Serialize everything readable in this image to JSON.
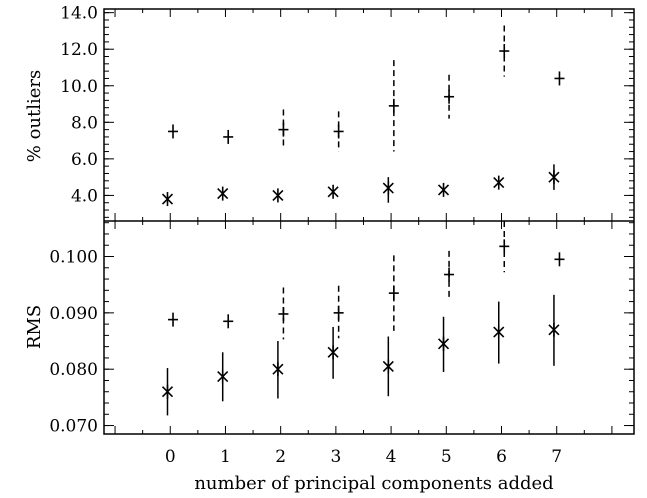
{
  "chart_data": [
    {
      "type": "scatter",
      "panel": "top",
      "xlabel": "",
      "ylabel": "% outliers",
      "ylim": [
        2.6,
        14.2
      ],
      "yticks": [
        "4.0",
        "6.0",
        "8.0",
        "10.0",
        "12.0",
        "14.0"
      ],
      "xlim": [
        -1.2,
        8.4
      ],
      "series": [
        {
          "marker": "plus",
          "errorbar": "dashed",
          "points": [
            {
              "x": 0.05,
              "y": 7.5,
              "lo": 7.5,
              "hi": 7.5
            },
            {
              "x": 1.05,
              "y": 7.2,
              "lo": 7.2,
              "hi": 7.2
            },
            {
              "x": 2.05,
              "y": 7.6,
              "lo": 6.6,
              "hi": 8.7
            },
            {
              "x": 3.05,
              "y": 7.5,
              "lo": 6.4,
              "hi": 8.6
            },
            {
              "x": 4.05,
              "y": 8.9,
              "lo": 6.4,
              "hi": 11.4
            },
            {
              "x": 5.05,
              "y": 9.4,
              "lo": 8.2,
              "hi": 10.6
            },
            {
              "x": 6.05,
              "y": 11.9,
              "lo": 10.5,
              "hi": 13.3
            },
            {
              "x": 7.05,
              "y": 10.4,
              "lo": 10.4,
              "hi": 10.4
            }
          ]
        },
        {
          "marker": "asterisk",
          "errorbar": "solid",
          "points": [
            {
              "x": -0.05,
              "y": 3.8,
              "lo": 3.8,
              "hi": 3.8
            },
            {
              "x": 0.95,
              "y": 4.1,
              "lo": 4.1,
              "hi": 4.1
            },
            {
              "x": 1.95,
              "y": 4.0,
              "lo": 4.0,
              "hi": 4.0
            },
            {
              "x": 2.95,
              "y": 4.2,
              "lo": 4.2,
              "hi": 4.2
            },
            {
              "x": 3.95,
              "y": 4.4,
              "lo": 3.6,
              "hi": 5.0
            },
            {
              "x": 4.95,
              "y": 4.3,
              "lo": 4.3,
              "hi": 4.3
            },
            {
              "x": 5.95,
              "y": 4.7,
              "lo": 4.7,
              "hi": 4.7
            },
            {
              "x": 6.95,
              "y": 5.0,
              "lo": 4.3,
              "hi": 5.7
            }
          ]
        }
      ]
    },
    {
      "type": "scatter",
      "panel": "bottom",
      "xlabel": "number of principal components added",
      "ylabel": "RMS",
      "ylim": [
        0.0685,
        0.1063
      ],
      "yticks": [
        "0.070",
        "0.080",
        "0.090",
        "0.100"
      ],
      "xlim": [
        -1.2,
        8.4
      ],
      "xticks": [
        "0",
        "1",
        "2",
        "3",
        "4",
        "5",
        "6",
        "7"
      ],
      "series": [
        {
          "marker": "plus",
          "errorbar": "dashed",
          "points": [
            {
              "x": 0.05,
              "y": 0.0888,
              "lo": 0.0888,
              "hi": 0.0888
            },
            {
              "x": 1.05,
              "y": 0.0885,
              "lo": 0.0885,
              "hi": 0.0885
            },
            {
              "x": 2.05,
              "y": 0.0898,
              "lo": 0.0853,
              "hi": 0.0945
            },
            {
              "x": 3.05,
              "y": 0.09,
              "lo": 0.0855,
              "hi": 0.0948
            },
            {
              "x": 4.05,
              "y": 0.0935,
              "lo": 0.0868,
              "hi": 0.1002
            },
            {
              "x": 5.05,
              "y": 0.0968,
              "lo": 0.0923,
              "hi": 0.101
            },
            {
              "x": 6.05,
              "y": 0.1018,
              "lo": 0.0972,
              "hi": 0.1063
            },
            {
              "x": 7.05,
              "y": 0.0995,
              "lo": 0.0995,
              "hi": 0.0995
            }
          ]
        },
        {
          "marker": "asterisk",
          "errorbar": "solid",
          "points": [
            {
              "x": -0.05,
              "y": 0.076,
              "lo": 0.0718,
              "hi": 0.0802
            },
            {
              "x": 0.95,
              "y": 0.0787,
              "lo": 0.0743,
              "hi": 0.083
            },
            {
              "x": 1.95,
              "y": 0.08,
              "lo": 0.0748,
              "hi": 0.085
            },
            {
              "x": 2.95,
              "y": 0.083,
              "lo": 0.0783,
              "hi": 0.0875
            },
            {
              "x": 3.95,
              "y": 0.0805,
              "lo": 0.0752,
              "hi": 0.0858
            },
            {
              "x": 4.95,
              "y": 0.0845,
              "lo": 0.0795,
              "hi": 0.0893
            },
            {
              "x": 5.95,
              "y": 0.0866,
              "lo": 0.081,
              "hi": 0.092
            },
            {
              "x": 6.95,
              "y": 0.087,
              "lo": 0.0806,
              "hi": 0.0932
            }
          ]
        }
      ]
    }
  ]
}
